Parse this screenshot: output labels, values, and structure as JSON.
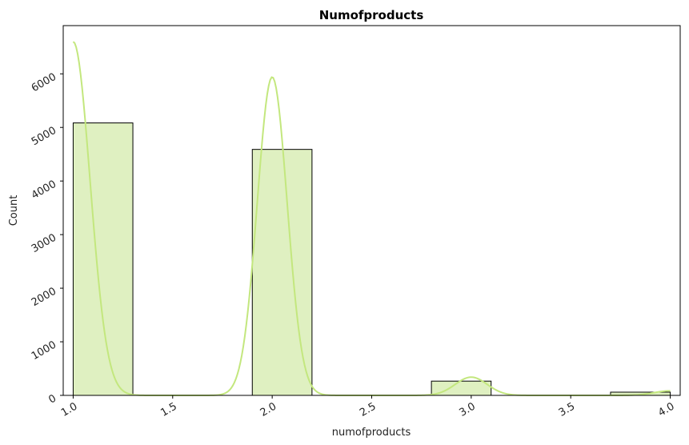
{
  "chart_data": {
    "type": "bar",
    "title": "Numofproducts",
    "xlabel": "numofproducts",
    "ylabel": "Count",
    "xlim": [
      0.95,
      4.05
    ],
    "ylim": [
      0,
      6900
    ],
    "x_ticks": [
      "1.0",
      "1.5",
      "2.0",
      "2.5",
      "3.0",
      "3.5",
      "4.0"
    ],
    "x_tick_values": [
      1.0,
      1.5,
      2.0,
      2.5,
      3.0,
      3.5,
      4.0
    ],
    "y_ticks": [
      "0",
      "1000",
      "2000",
      "3000",
      "4000",
      "5000",
      "6000"
    ],
    "y_tick_values": [
      0,
      1000,
      2000,
      3000,
      4000,
      5000,
      6000
    ],
    "bins": [
      {
        "x0": 1.0,
        "x1": 1.3,
        "count": 5084
      },
      {
        "x0": 1.9,
        "x1": 2.2,
        "count": 4590
      },
      {
        "x0": 2.8,
        "x1": 3.1,
        "count": 266
      },
      {
        "x0": 3.7,
        "x1": 4.0,
        "count": 60
      }
    ],
    "kde_peaks": [
      {
        "center": 1.0,
        "height": 6600,
        "sigma": 0.085
      },
      {
        "center": 2.0,
        "height": 5940,
        "sigma": 0.075
      },
      {
        "center": 3.0,
        "height": 340,
        "sigma": 0.08
      },
      {
        "center": 4.0,
        "height": 85,
        "sigma": 0.08
      }
    ],
    "colors": {
      "bar_fill": "#dff0c1",
      "bar_edge": "#000000",
      "kde": "#c3e77e"
    },
    "grid": false,
    "tick_rotation": 30
  }
}
